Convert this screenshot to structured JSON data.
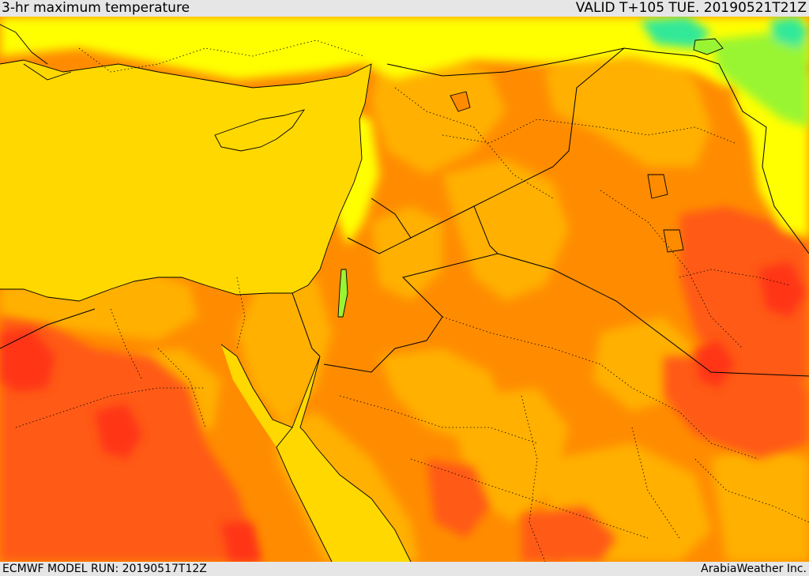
{
  "header": {
    "title": "3-hr maximum temperature",
    "valid_time": "VALID T+105 TUE. 20190521T21Z"
  },
  "footer": {
    "model_run": "ECMWF MODEL RUN: 20190517T12Z",
    "credit": "ArabiaWeather Inc."
  },
  "map": {
    "region": "Eastern Mediterranean, Levant, Arabian Peninsula",
    "palette": {
      "sea": "#ffd800",
      "cool_green": "#33e899",
      "cool_lime": "#99f533",
      "mild_yellow": "#ffff00",
      "warm": "#ffb000",
      "hot": "#ff8c00",
      "very_hot": "#ff5a14",
      "extreme": "#ff3518"
    }
  }
}
